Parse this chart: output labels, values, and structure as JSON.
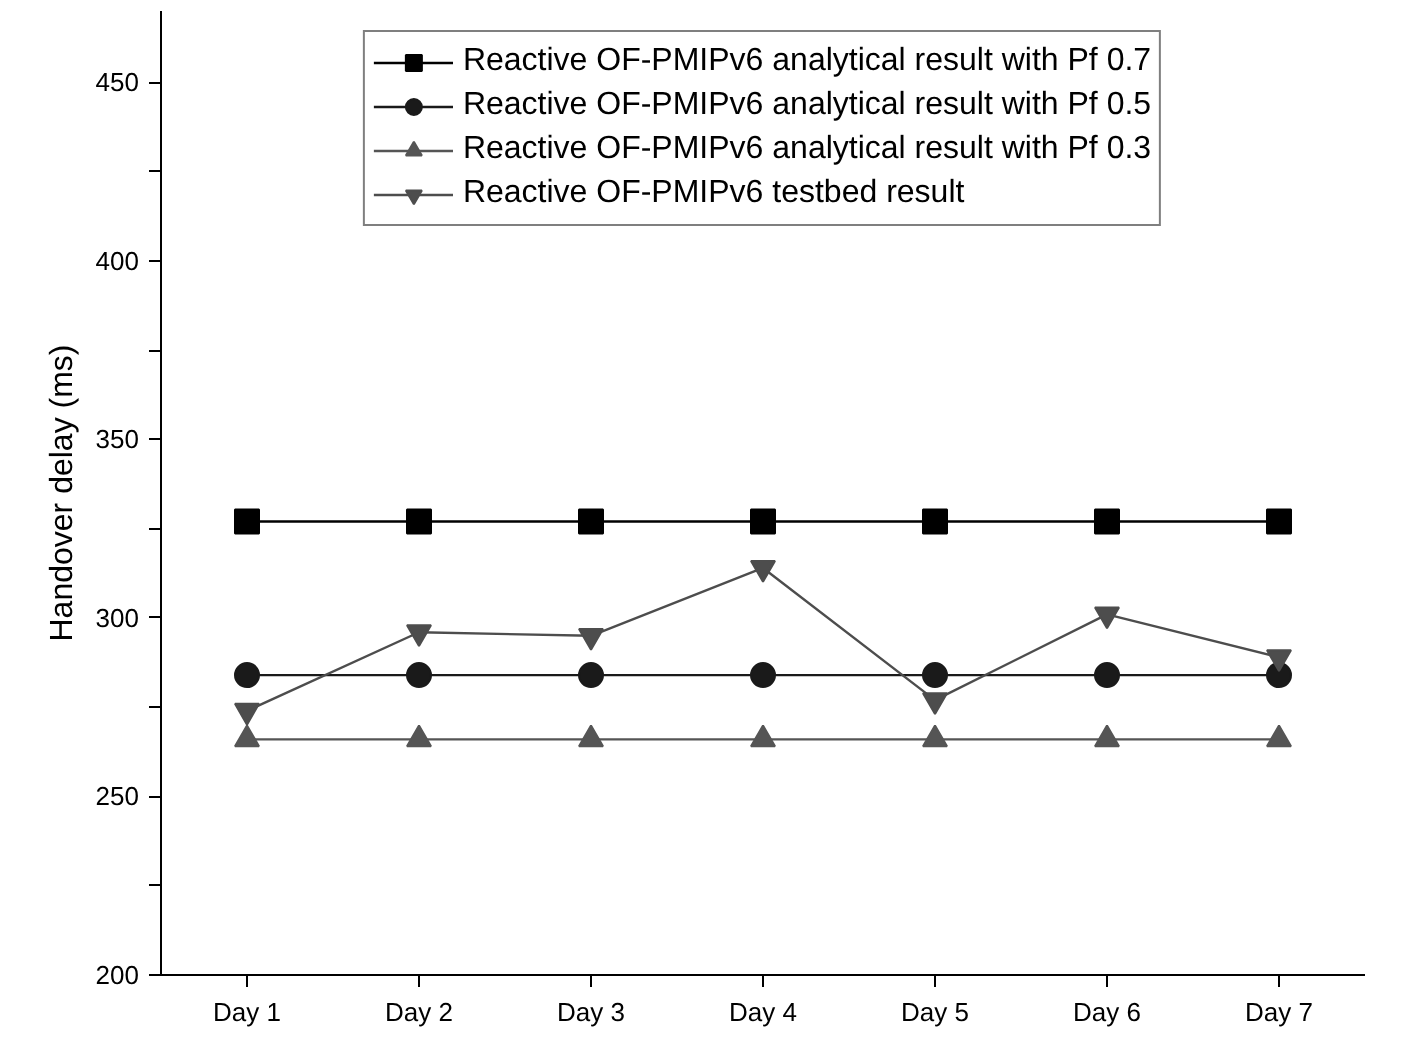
{
  "chart_data": {
    "type": "line",
    "ylabel": "Handover delay (ms)",
    "categories": [
      "Day 1",
      "Day 2",
      "Day 3",
      "Day 4",
      "Day 5",
      "Day 6",
      "Day 7"
    ],
    "series": [
      {
        "name": "Reactive OF-PMIPv6 analytical result with Pf 0.7",
        "color": "#000000",
        "marker": "square",
        "values": [
          327,
          327,
          327,
          327,
          327,
          327,
          327
        ]
      },
      {
        "name": "Reactive OF-PMIPv6 analytical result with Pf 0.5",
        "color": "#1a1a1a",
        "marker": "circle",
        "values": [
          284,
          284,
          284,
          284,
          284,
          284,
          284
        ]
      },
      {
        "name": "Reactive OF-PMIPv6 analytical result with Pf 0.3",
        "color": "#555555",
        "marker": "triangle",
        "values": [
          266,
          266,
          266,
          266,
          266,
          266,
          266
        ]
      },
      {
        "name": "Reactive OF-PMIPv6 testbed result",
        "color": "#4d4d4d",
        "marker": "triangle",
        "values": [
          274,
          296,
          295,
          314,
          277,
          301,
          289
        ]
      }
    ],
    "ylim": [
      200,
      470
    ],
    "yticks": [
      200,
      {
        "value": 225,
        "label": null
      },
      250,
      {
        "value": 275,
        "label": null
      },
      300,
      {
        "value": 325,
        "label": null
      },
      350,
      {
        "value": 375,
        "label": null
      },
      400,
      {
        "value": 425,
        "label": null
      },
      450
    ],
    "grid": false,
    "legend": "top",
    "line_style": "solid"
  }
}
